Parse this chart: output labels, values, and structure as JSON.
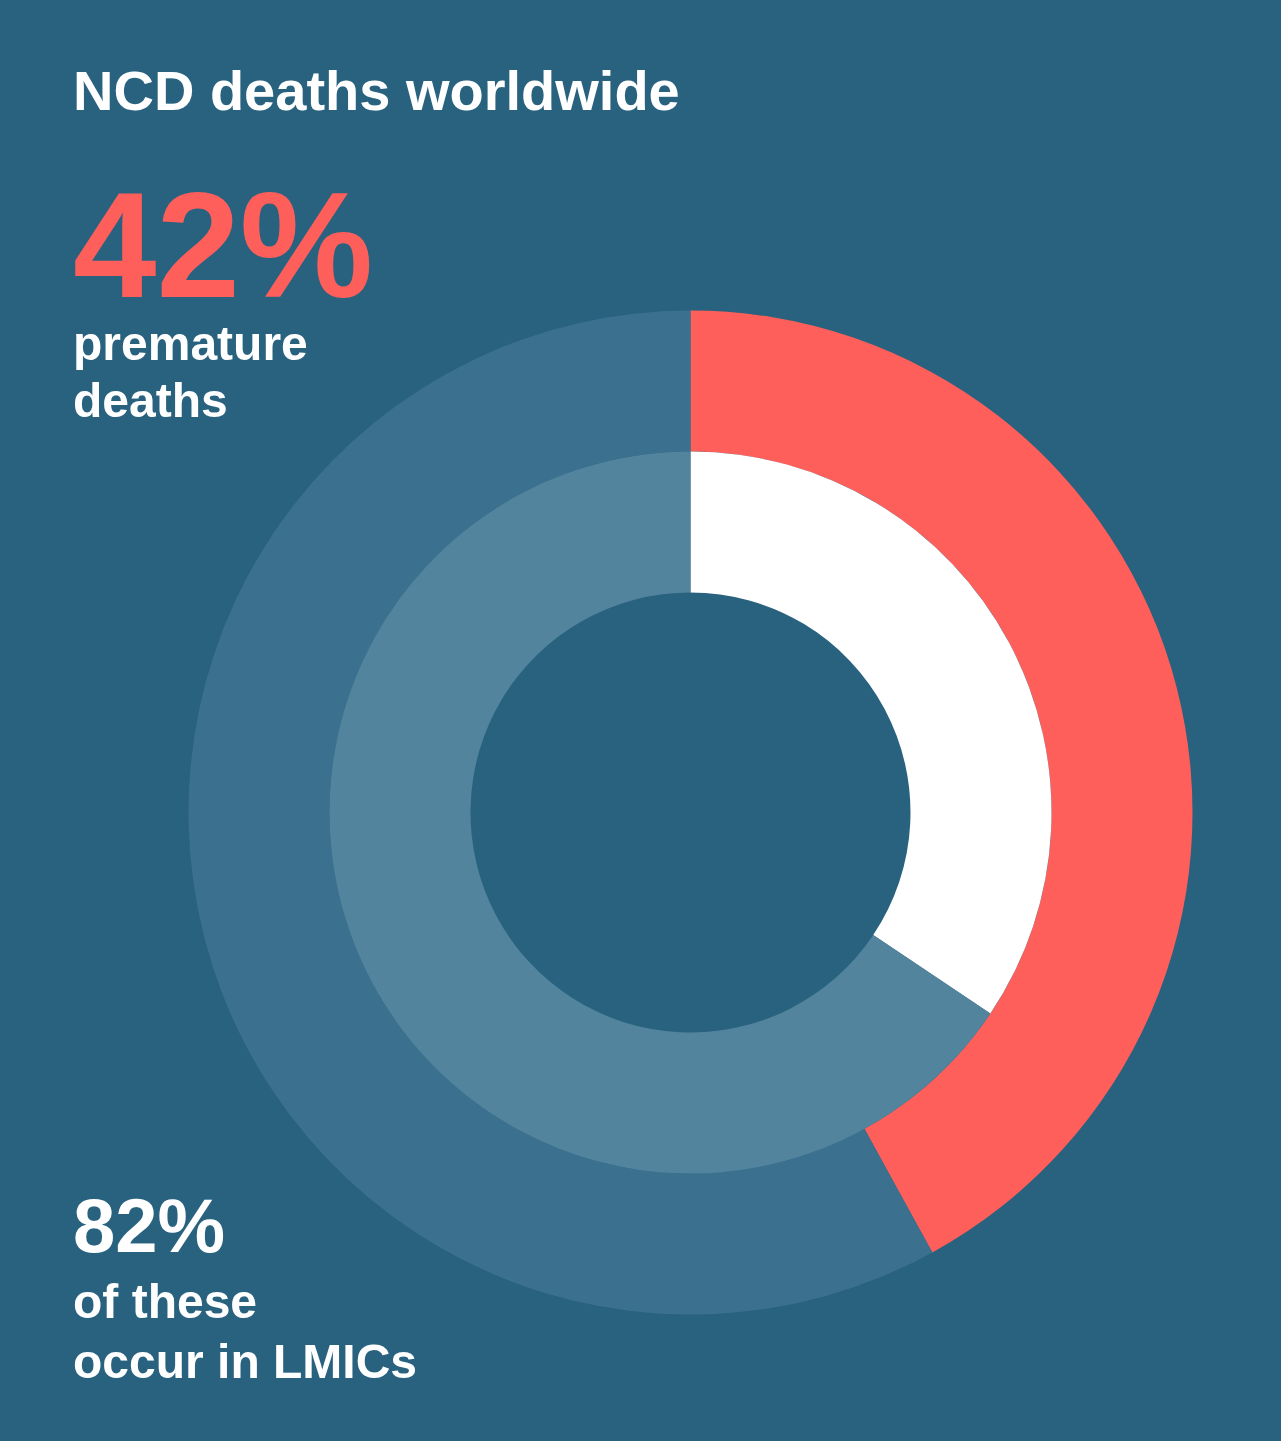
{
  "chart_data": {
    "type": "donut",
    "title": "NCD deaths worldwide",
    "series": [
      {
        "values": [
          42,
          58
        ],
        "colors": [
          "#fe5f5b",
          "#3b718e"
        ]
      },
      {
        "values": [
          34.4,
          65.6
        ],
        "colors": [
          "#ffffff",
          "#53849d"
        ]
      }
    ],
    "annotations": [
      "42%",
      "premature\ndeaths",
      "82%",
      "of these\noccur in LMICs"
    ]
  }
}
